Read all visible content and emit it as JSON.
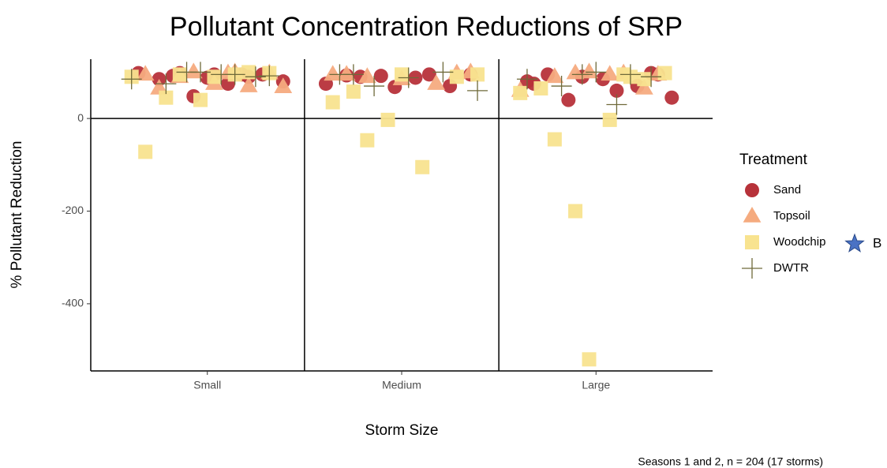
{
  "chart_data": {
    "type": "jitter",
    "title": "Pollutant Concentration Reductions of SRP",
    "x_label": "Storm Size",
    "y_label": "% Pollutant Reduction",
    "caption": "Seasons 1 and 2, n = 204 (17 storms)",
    "legend_title": "Treatment",
    "categories": [
      "Small",
      "Medium",
      "Large"
    ],
    "xlim": [
      0.4,
      3.6
    ],
    "ylim": [
      -545,
      128
    ],
    "yticks": [
      -400,
      -200,
      0
    ],
    "hline": 0,
    "vlines": [
      1.5,
      2.5
    ],
    "grid": false,
    "series": [
      {
        "name": "Sand",
        "color": "#b7323a",
        "marker": "circle",
        "x": [
          "Small",
          "Small",
          "Small",
          "Small",
          "Small",
          "Small",
          "Small",
          "Small",
          "Small",
          "Small",
          "Small",
          "Small",
          "Medium",
          "Medium",
          "Medium",
          "Medium",
          "Medium",
          "Medium",
          "Medium",
          "Medium",
          "Medium",
          "Large",
          "Large",
          "Large",
          "Large",
          "Large",
          "Large",
          "Large",
          "Large",
          "Large",
          "Large",
          "Large"
        ],
        "values": [
          98,
          95,
          90,
          80,
          85,
          48,
          75,
          95,
          98,
          92,
          88,
          95,
          95,
          93,
          92,
          88,
          70,
          75,
          90,
          68,
          95,
          95,
          75,
          40,
          85,
          70,
          45,
          95,
          90,
          60,
          98,
          80
        ]
      },
      {
        "name": "Topsoil",
        "color": "#f5ab7f",
        "marker": "triangle",
        "x": [
          "Small",
          "Small",
          "Small",
          "Small",
          "Small",
          "Small",
          "Small",
          "Small",
          "Small",
          "Small",
          "Medium",
          "Medium",
          "Medium",
          "Medium",
          "Medium",
          "Medium",
          "Medium",
          "Large",
          "Large",
          "Large",
          "Large",
          "Large",
          "Large",
          "Large",
          "Large"
        ],
        "values": [
          100,
          98,
          95,
          90,
          75,
          70,
          68,
          65,
          100,
          98,
          98,
          95,
          90,
          85,
          75,
          100,
          95,
          98,
          95,
          65,
          60,
          90,
          100,
          98,
          95
        ]
      },
      {
        "name": "Woodchip",
        "color": "#f8e38f",
        "marker": "square",
        "x": [
          "Small",
          "Small",
          "Small",
          "Small",
          "Small",
          "Small",
          "Small",
          "Small",
          "Small",
          "Medium",
          "Medium",
          "Medium",
          "Medium",
          "Medium",
          "Medium",
          "Medium",
          "Medium",
          "Large",
          "Large",
          "Large",
          "Large",
          "Large",
          "Large",
          "Large",
          "Large",
          "Large",
          "Large"
        ],
        "values": [
          90,
          45,
          40,
          95,
          98,
          -72,
          95,
          90,
          100,
          95,
          58,
          -3,
          -105,
          90,
          35,
          -47,
          95,
          90,
          98,
          65,
          -200,
          -3,
          85,
          55,
          -45,
          -520,
          95
        ]
      },
      {
        "name": "DWTR",
        "color": "#6f6a3a",
        "marker": "plus",
        "x": [
          "Small",
          "Small",
          "Small",
          "Small",
          "Small",
          "Small",
          "Small",
          "Small",
          "Medium",
          "Medium",
          "Medium",
          "Medium",
          "Medium",
          "Medium",
          "Large",
          "Large",
          "Large",
          "Large",
          "Large",
          "Large",
          "Large"
        ],
        "values": [
          100,
          95,
          90,
          85,
          75,
          100,
          95,
          92,
          95,
          70,
          88,
          100,
          60,
          95,
          95,
          30,
          90,
          85,
          70,
          100,
          95
        ]
      }
    ],
    "extra_legend": {
      "label": "B",
      "color": "#4a72c4",
      "marker": "star"
    }
  }
}
